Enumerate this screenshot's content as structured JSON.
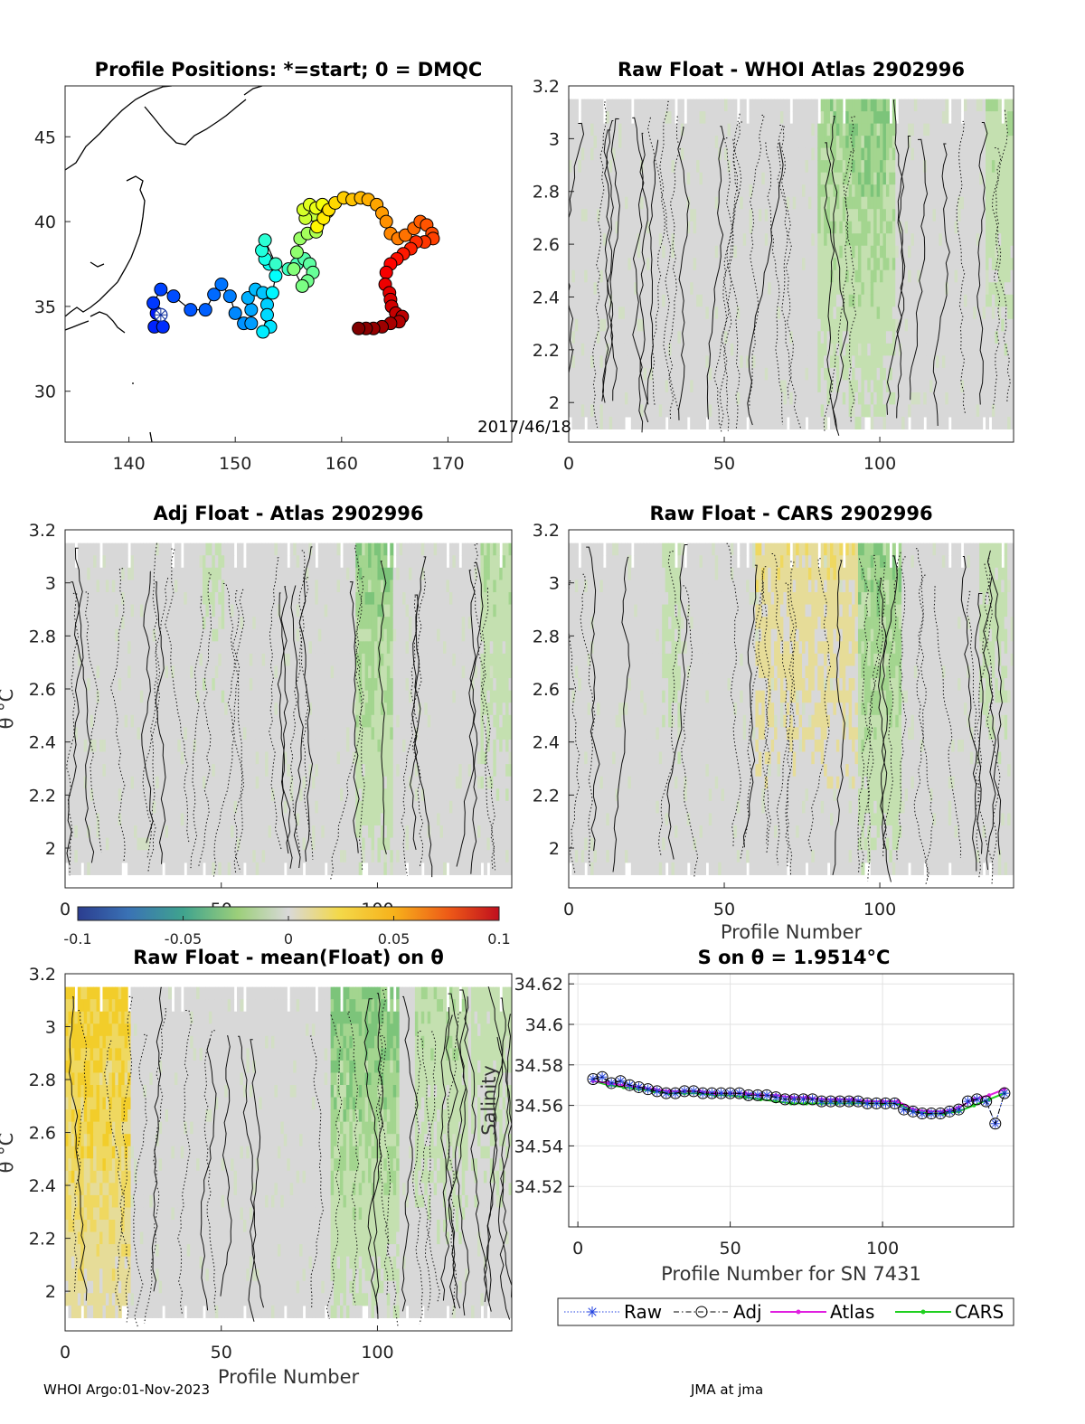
{
  "footer": {
    "left": "WHOI Argo:01-Nov-2023",
    "right": "JMA at jma"
  },
  "colorbar": {
    "ticks": [
      "-0.1",
      "-0.05",
      "0",
      "0.05",
      "0.1"
    ],
    "range": [
      -0.1,
      0.1
    ]
  },
  "chart_data": [
    {
      "id": "map",
      "type": "scatter",
      "title": "Profile Positions: *=start; 0 = DMQC",
      "annotation": "2017/46/18",
      "xlim": [
        134,
        176
      ],
      "ylim": [
        27,
        48
      ],
      "xticks": [
        "140",
        "150",
        "160",
        "170"
      ],
      "yticks": [
        "30",
        "35",
        "40",
        "45"
      ],
      "start": [
        143,
        34.5
      ],
      "track": [
        [
          142.6,
          34.6
        ],
        [
          142.4,
          33.8
        ],
        [
          143.2,
          33.8
        ],
        [
          142.3,
          35.2
        ],
        [
          143.0,
          36.0
        ],
        [
          144.2,
          35.6
        ],
        [
          145.8,
          34.8
        ],
        [
          147.2,
          34.8
        ],
        [
          148.0,
          35.7
        ],
        [
          148.7,
          36.3
        ],
        [
          149.5,
          35.6
        ],
        [
          150.0,
          34.6
        ],
        [
          150.8,
          34.0
        ],
        [
          151.5,
          34.0
        ],
        [
          151.5,
          34.8
        ],
        [
          151.2,
          35.5
        ],
        [
          151.9,
          36.0
        ],
        [
          152.6,
          35.8
        ],
        [
          153.0,
          35.1
        ],
        [
          153.0,
          34.5
        ],
        [
          153.3,
          33.8
        ],
        [
          152.6,
          33.5
        ],
        [
          153.5,
          35.8
        ],
        [
          153.8,
          36.8
        ],
        [
          153.2,
          37.5
        ],
        [
          152.8,
          37.8
        ],
        [
          152.5,
          38.3
        ],
        [
          152.8,
          38.9
        ],
        [
          153.8,
          37.5
        ],
        [
          155.0,
          37.2
        ],
        [
          155.8,
          37.5
        ],
        [
          156.5,
          37.8
        ],
        [
          157.0,
          37.5
        ],
        [
          157.3,
          37.0
        ],
        [
          156.8,
          36.5
        ],
        [
          156.3,
          36.2
        ],
        [
          155.5,
          37.2
        ],
        [
          155.8,
          38.2
        ],
        [
          156.1,
          39.0
        ],
        [
          156.8,
          39.3
        ],
        [
          157.6,
          39.4
        ],
        [
          157.9,
          40.0
        ],
        [
          157.3,
          40.4
        ],
        [
          156.6,
          40.2
        ],
        [
          156.4,
          40.7
        ],
        [
          157.0,
          41.0
        ],
        [
          157.6,
          40.8
        ],
        [
          158.2,
          41.0
        ],
        [
          158.7,
          40.6
        ],
        [
          157.7,
          39.7
        ],
        [
          158.3,
          40.2
        ],
        [
          158.8,
          40.7
        ],
        [
          159.4,
          41.1
        ],
        [
          160.2,
          41.4
        ],
        [
          161.0,
          41.3
        ],
        [
          161.8,
          41.4
        ],
        [
          162.5,
          41.3
        ],
        [
          163.3,
          41.0
        ],
        [
          163.8,
          40.5
        ],
        [
          164.2,
          40.0
        ],
        [
          164.6,
          39.3
        ],
        [
          165.3,
          39.0
        ],
        [
          166.0,
          39.2
        ],
        [
          166.8,
          39.6
        ],
        [
          167.4,
          40.0
        ],
        [
          168.0,
          39.8
        ],
        [
          168.5,
          39.3
        ],
        [
          168.6,
          39.0
        ],
        [
          167.8,
          38.8
        ],
        [
          167.0,
          38.8
        ],
        [
          166.5,
          38.4
        ],
        [
          165.8,
          38.1
        ],
        [
          165.2,
          37.8
        ],
        [
          164.6,
          37.5
        ],
        [
          164.2,
          37.0
        ],
        [
          164.1,
          36.3
        ],
        [
          164.5,
          35.8
        ],
        [
          164.6,
          35.4
        ],
        [
          164.7,
          35.0
        ],
        [
          165.1,
          34.6
        ],
        [
          165.7,
          34.4
        ],
        [
          165.4,
          34.1
        ],
        [
          164.6,
          34.0
        ],
        [
          163.8,
          33.8
        ],
        [
          163.0,
          33.7
        ],
        [
          162.3,
          33.7
        ],
        [
          161.6,
          33.7
        ]
      ]
    },
    {
      "id": "raw_whoi",
      "type": "heatmap",
      "title": "Raw Float - WHOI Atlas  2902996",
      "xlim": [
        0,
        143
      ],
      "ylim": [
        1.85,
        3.2
      ],
      "xticks": [
        "0",
        "50",
        "100"
      ],
      "yticks": [
        "2",
        "2.2",
        "2.4",
        "2.6",
        "2.8",
        "3",
        "3.2"
      ],
      "green_bands": [
        [
          80,
          104,
          0.8
        ],
        [
          89,
          101,
          0.95
        ],
        [
          134,
          143,
          0.6
        ]
      ],
      "yellow_bands": []
    },
    {
      "id": "adj_atlas",
      "type": "heatmap",
      "title": "Adj Float - Atlas  2902996",
      "xlim": [
        0,
        143
      ],
      "ylim": [
        1.85,
        3.2
      ],
      "xticks": [
        "0",
        "50",
        "100"
      ],
      "yticks": [
        "2",
        "2.2",
        "2.4",
        "2.6",
        "2.8",
        "3",
        "3.2"
      ],
      "ylabel": "θ °C",
      "green_bands": [
        [
          93,
          104,
          0.9
        ],
        [
          133,
          143,
          0.6
        ],
        [
          44,
          50,
          0.4
        ]
      ],
      "yellow_bands": []
    },
    {
      "id": "raw_cars",
      "type": "heatmap",
      "title": "Raw Float - CARS  2902996",
      "xlim": [
        0,
        143
      ],
      "ylim": [
        1.85,
        3.2
      ],
      "xticks": [
        "0",
        "50",
        "100"
      ],
      "yticks": [
        "2",
        "2.2",
        "2.4",
        "2.6",
        "2.8",
        "3",
        "3.2"
      ],
      "xlabel": "Profile Number",
      "green_bands": [
        [
          93,
          106,
          0.9
        ],
        [
          30,
          35,
          0.5
        ],
        [
          132,
          140,
          0.5
        ]
      ],
      "yellow_bands": [
        [
          60,
          92,
          0.55
        ]
      ]
    },
    {
      "id": "raw_mean",
      "type": "heatmap",
      "title": "Raw Float - mean(Float) on θ",
      "xlim": [
        0,
        143
      ],
      "ylim": [
        1.85,
        3.2
      ],
      "xticks": [
        "0",
        "50",
        "100"
      ],
      "yticks": [
        "2",
        "2.2",
        "2.4",
        "2.6",
        "2.8",
        "3",
        "3.2"
      ],
      "ylabel": "θ °C",
      "xlabel": "Profile Number",
      "green_bands": [
        [
          85,
          106,
          1.0
        ],
        [
          112,
          128,
          0.6
        ],
        [
          130,
          143,
          0.5
        ]
      ],
      "yellow_bands": [
        [
          0,
          20,
          1.0
        ]
      ]
    },
    {
      "id": "salinity",
      "type": "line",
      "title": "S on θ = 1.9514°C",
      "xlabel": "Profile Number for SN 7431",
      "ylabel": "Salinity",
      "xlim": [
        -3,
        143
      ],
      "ylim": [
        34.5,
        34.625
      ],
      "xticks": [
        "0",
        "50",
        "100"
      ],
      "yticks": [
        "34.52",
        "34.54",
        "34.56",
        "34.58",
        "34.6",
        "34.62"
      ],
      "grid": true,
      "legend": [
        "Raw",
        "Adj",
        "Atlas",
        "CARS"
      ],
      "legend_position": "below",
      "series": [
        {
          "name": "Raw",
          "color": "#2040e0",
          "x": [
            5,
            8,
            11,
            14,
            17,
            20,
            23,
            26,
            29,
            32,
            35,
            38,
            41,
            44,
            47,
            50,
            53,
            56,
            59,
            62,
            65,
            68,
            71,
            74,
            77,
            80,
            83,
            86,
            89,
            92,
            95,
            98,
            101,
            104,
            107,
            110,
            113,
            116,
            119,
            122,
            125,
            128,
            131,
            134,
            137,
            140
          ],
          "y": [
            34.573,
            34.574,
            34.571,
            34.572,
            34.57,
            34.569,
            34.568,
            34.567,
            34.566,
            34.566,
            34.567,
            34.567,
            34.566,
            34.566,
            34.566,
            34.566,
            34.566,
            34.565,
            34.565,
            34.565,
            34.564,
            34.563,
            34.563,
            34.563,
            34.563,
            34.562,
            34.562,
            34.562,
            34.562,
            34.562,
            34.561,
            34.561,
            34.561,
            34.561,
            34.558,
            34.557,
            34.556,
            34.556,
            34.556,
            34.557,
            34.558,
            34.562,
            34.563,
            34.562,
            34.551,
            34.566
          ]
        },
        {
          "name": "Adj",
          "color": "#000000",
          "x": [
            5,
            8,
            11,
            14,
            17,
            20,
            23,
            26,
            29,
            32,
            35,
            38,
            41,
            44,
            47,
            50,
            53,
            56,
            59,
            62,
            65,
            68,
            71,
            74,
            77,
            80,
            83,
            86,
            89,
            92,
            95,
            98,
            101,
            104,
            107,
            110,
            113,
            116,
            119,
            122,
            125,
            128,
            131,
            134,
            137,
            140
          ],
          "y": [
            34.573,
            34.574,
            34.571,
            34.572,
            34.57,
            34.569,
            34.568,
            34.567,
            34.566,
            34.566,
            34.567,
            34.567,
            34.566,
            34.566,
            34.566,
            34.566,
            34.566,
            34.565,
            34.565,
            34.565,
            34.564,
            34.563,
            34.563,
            34.563,
            34.563,
            34.562,
            34.562,
            34.562,
            34.562,
            34.562,
            34.561,
            34.561,
            34.561,
            34.561,
            34.558,
            34.557,
            34.556,
            34.556,
            34.556,
            34.557,
            34.558,
            34.562,
            34.563,
            34.562,
            34.551,
            34.566
          ]
        },
        {
          "name": "Atlas",
          "color": "#e020e0",
          "x": [
            5,
            10,
            15,
            20,
            25,
            30,
            35,
            40,
            45,
            50,
            55,
            60,
            65,
            70,
            75,
            80,
            85,
            90,
            95,
            100,
            105,
            110,
            115,
            120,
            125,
            130,
            135,
            140
          ],
          "y": [
            34.572,
            34.571,
            34.57,
            34.569,
            34.568,
            34.567,
            34.567,
            34.567,
            34.566,
            34.566,
            34.566,
            34.565,
            34.565,
            34.564,
            34.564,
            34.563,
            34.563,
            34.563,
            34.562,
            34.562,
            34.562,
            34.558,
            34.557,
            34.557,
            34.559,
            34.563,
            34.565,
            34.568
          ]
        },
        {
          "name": "CARS",
          "color": "#20d020",
          "x": [
            5,
            10,
            15,
            20,
            25,
            30,
            35,
            40,
            45,
            50,
            55,
            60,
            65,
            70,
            75,
            80,
            85,
            90,
            95,
            100,
            105,
            110,
            115,
            120,
            125,
            130,
            135,
            140
          ],
          "y": [
            34.572,
            34.57,
            34.569,
            34.568,
            34.567,
            34.566,
            34.566,
            34.566,
            34.565,
            34.565,
            34.564,
            34.563,
            34.562,
            34.561,
            34.561,
            34.561,
            34.561,
            34.561,
            34.561,
            34.561,
            34.561,
            34.557,
            34.556,
            34.556,
            34.557,
            34.56,
            34.563,
            34.566
          ]
        }
      ]
    }
  ]
}
